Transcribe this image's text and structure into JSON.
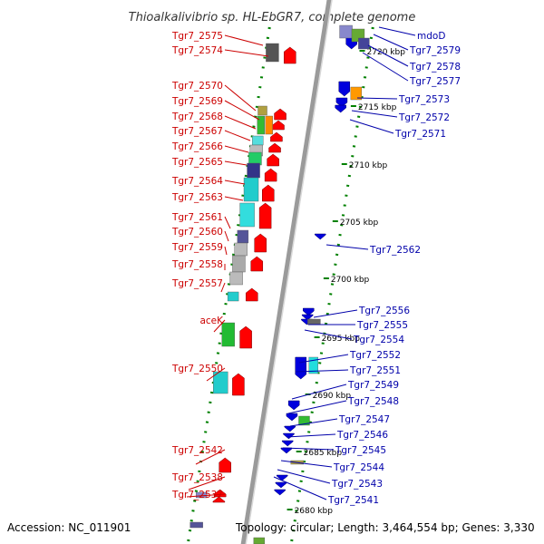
{
  "title": "Thioalkalivibrio sp. HL-EbGR7, complete genome",
  "footer": {
    "accession": "Accession: NC_011901",
    "summary": "Topology: circular; Length: 3,464,554 bp; Genes: 3,330"
  },
  "colors": {
    "left_label": "#cc0000",
    "right_label": "#0000aa",
    "forward_arrow": "#ff0000",
    "reverse_arrow": "#0000dd",
    "backbone": "#9a9a9a",
    "tick": "#008000"
  },
  "scale_labels": [
    "2720 kbp",
    "2715 kbp",
    "2710 kbp",
    "2705 kbp",
    "2700 kbp",
    "2695 kbp",
    "2690 kbp",
    "2685 kbp",
    "2680 kbp"
  ],
  "left_genes": [
    "Tgr7_2575",
    "Tgr7_2574",
    "Tgr7_2570",
    "Tgr7_2569",
    "Tgr7_2568",
    "Tgr7_2567",
    "Tgr7_2566",
    "Tgr7_2565",
    "Tgr7_2564",
    "Tgr7_2563",
    "Tgr7_2561",
    "Tgr7_2560",
    "Tgr7_2559",
    "Tgr7_2558",
    "Tgr7_2557",
    "aceK",
    "Tgr7_2550",
    "Tgr7_2542",
    "Tgr7_2538",
    "Tgr7_2537"
  ],
  "right_genes": [
    "mdoD",
    "Tgr7_2579",
    "Tgr7_2578",
    "Tgr7_2577",
    "Tgr7_2573",
    "Tgr7_2572",
    "Tgr7_2571",
    "Tgr7_2562",
    "Tgr7_2556",
    "Tgr7_2555",
    "Tgr7_2554",
    "Tgr7_2552",
    "Tgr7_2551",
    "Tgr7_2549",
    "Tgr7_2548",
    "Tgr7_2547",
    "Tgr7_2546",
    "Tgr7_2545",
    "Tgr7_2544",
    "Tgr7_2543",
    "Tgr7_2541"
  ]
}
